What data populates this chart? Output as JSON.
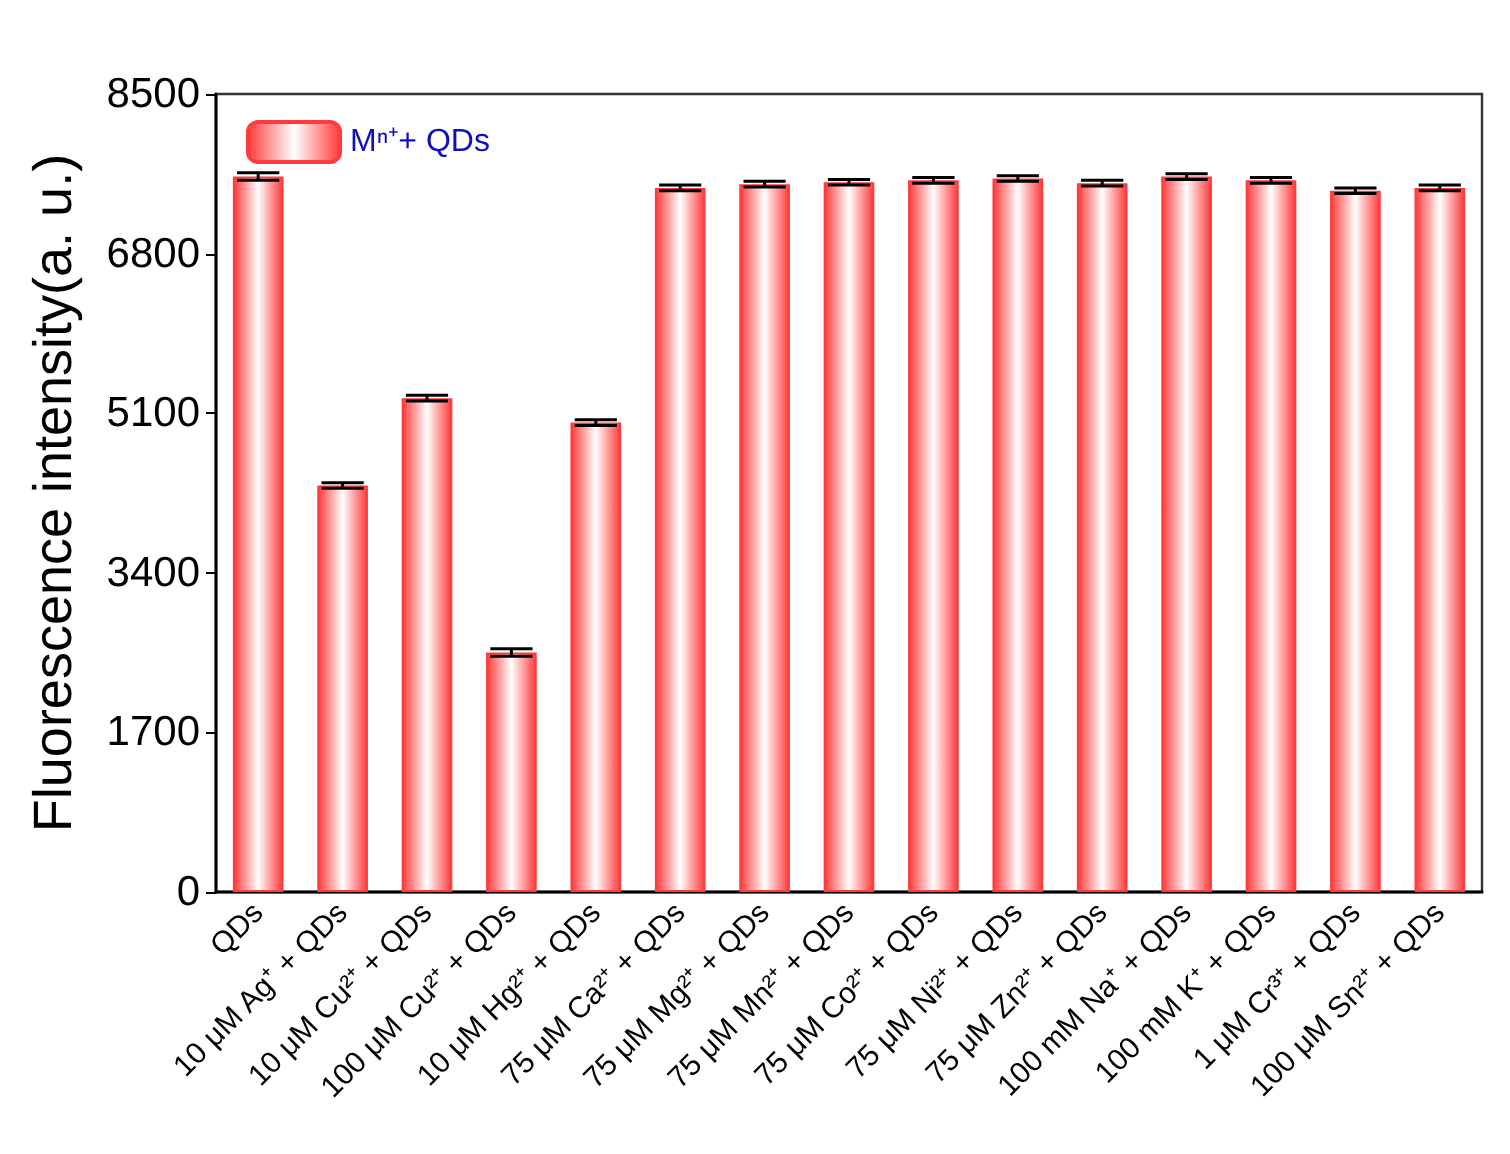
{
  "chart_data": {
    "type": "bar",
    "ylabel": "Fluorescence intensity(a. u.)",
    "categories": [
      "QDs",
      "10 μM Ag⁺ + QDs",
      "10 μM Cu²⁺ + QDs",
      "100 μM Cu²⁺ + QDs",
      "10 μM Hg²⁺ + QDs",
      "75 μM Ca²⁺ + QDs",
      "75 μM Mg²⁺ + QDs",
      "75 μM Mn²⁺ + QDs",
      "75 μM Co²⁺ + QDs",
      "75 μM Ni²⁺ + QDs",
      "75 μM Zn²⁺ + QDs",
      "100 mM Na⁺ + QDs",
      "100 mM K⁺ + QDs",
      "1 μM Cr³⁺ + QDs",
      "100 μM Sn²⁺ + QDs"
    ],
    "series": [
      {
        "name": "Mⁿ⁺+ QDs",
        "color": "#ff3b3b",
        "values": [
          7620,
          4330,
          5260,
          2550,
          5000,
          7500,
          7540,
          7560,
          7580,
          7600,
          7550,
          7620,
          7580,
          7470,
          7500
        ],
        "errors": [
          40,
          30,
          30,
          40,
          30,
          30,
          30,
          30,
          30,
          30,
          30,
          30,
          30,
          30,
          30
        ]
      }
    ],
    "ylim": [
      0,
      8500
    ],
    "yticks": [
      0,
      1700,
      3400,
      5100,
      6800,
      8500
    ],
    "grid": false,
    "legend": "top left"
  }
}
